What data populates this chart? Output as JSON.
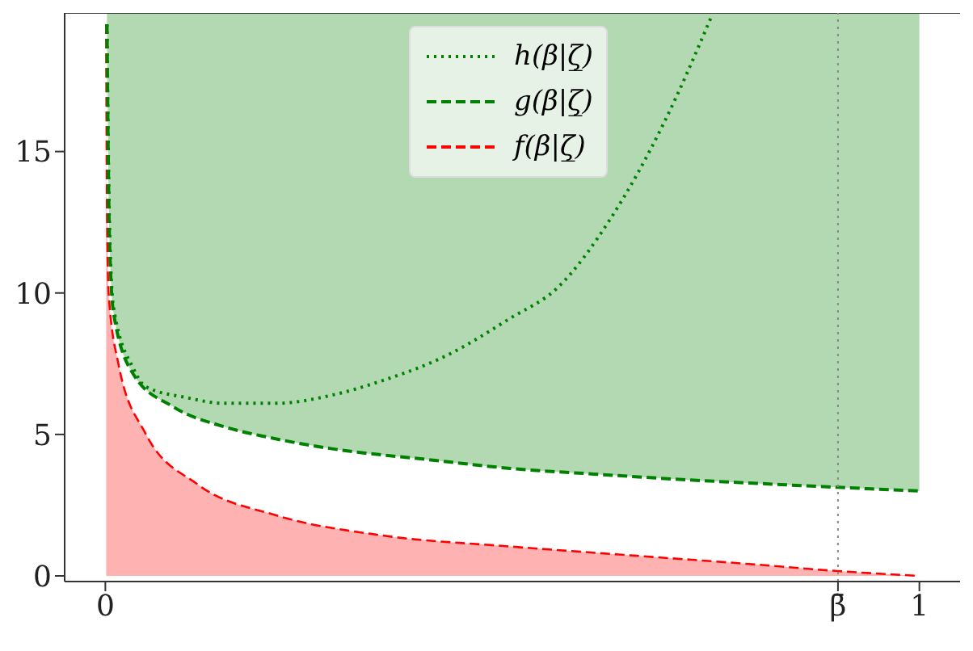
{
  "chart_data": {
    "type": "line",
    "xlim": [
      -0.05,
      1.05
    ],
    "ylim": [
      -0.2,
      19.9
    ],
    "xticks": [
      0,
      {
        "value": 0.9,
        "label": "β̄"
      },
      1
    ],
    "yticks": [
      0,
      5,
      10,
      15
    ],
    "grid": false,
    "legend": "top",
    "marker": "none",
    "ref_lines": [
      {
        "axis": "x",
        "value": 0.9,
        "color": "#888888",
        "line_style": "dotted"
      }
    ],
    "series": [
      {
        "name": "h(β|ζ̲)",
        "color": "#008000",
        "line_style": "dotted",
        "x": [
          0.002,
          0.005,
          0.01,
          0.035,
          0.049,
          0.1,
          0.146,
          0.21,
          0.28,
          0.34,
          0.42,
          0.497,
          0.556,
          0.62,
          0.686,
          0.745
        ],
        "values": [
          19.5,
          12.5,
          9.5,
          7.3,
          6.7,
          6.3,
          6.1,
          6.1,
          6.4,
          6.9,
          7.8,
          9.1,
          10.2,
          12.6,
          16.0,
          19.8
        ]
      },
      {
        "name": "g(β|ζ̲)",
        "color": "#008000",
        "line_style": "dashed",
        "x": [
          0.002,
          0.005,
          0.01,
          0.035,
          0.082,
          0.146,
          0.2,
          0.277,
          0.4,
          0.497,
          0.6,
          0.7,
          0.8,
          0.9,
          1
        ],
        "values": [
          19.5,
          12,
          9.3,
          7.1,
          6.0,
          5.27,
          4.9,
          4.5,
          4.1,
          3.8,
          3.6,
          3.42,
          3.27,
          3.13,
          3.0
        ],
        "lower": [
          19.5,
          12,
          9.3,
          7.1,
          6.0,
          5.27,
          4.9,
          4.5,
          4.1,
          3.8,
          3.6,
          3.42,
          3.27,
          3.13,
          3.0
        ],
        "upper": [
          19.9,
          19.9,
          19.9,
          19.9,
          19.9,
          19.9,
          19.9,
          19.9,
          19.9,
          19.9,
          19.9,
          19.9,
          19.9,
          19.9,
          19.9
        ]
      },
      {
        "name": "f(β|ζ̲)",
        "type": "area",
        "color": "#ff0000",
        "line_style": "dashed",
        "x": [
          0.001,
          0.002,
          0.004,
          0.016,
          0.049,
          0.113,
          0.21,
          0.34,
          0.497,
          0.653,
          0.8,
          0.9,
          1
        ],
        "values": [
          19.5,
          13,
          10,
          7.5,
          5.05,
          3.24,
          2.14,
          1.43,
          1.04,
          0.71,
          0.4,
          0.17,
          0
        ]
      }
    ]
  }
}
